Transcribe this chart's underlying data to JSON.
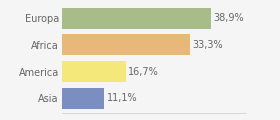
{
  "categories": [
    "Europa",
    "Africa",
    "America",
    "Asia"
  ],
  "values": [
    38.9,
    33.3,
    16.7,
    11.1
  ],
  "labels": [
    "38,9%",
    "33,3%",
    "16,7%",
    "11,1%"
  ],
  "colors": [
    "#a8bc8a",
    "#e8b87a",
    "#f5e87a",
    "#7a8fbf"
  ],
  "xlim": [
    0,
    48
  ],
  "background_color": "#f5f5f5",
  "bar_height": 0.78,
  "label_fontsize": 7.0,
  "tick_fontsize": 7.0,
  "label_color": "#666666",
  "tick_color": "#666666",
  "spine_color": "#cccccc"
}
